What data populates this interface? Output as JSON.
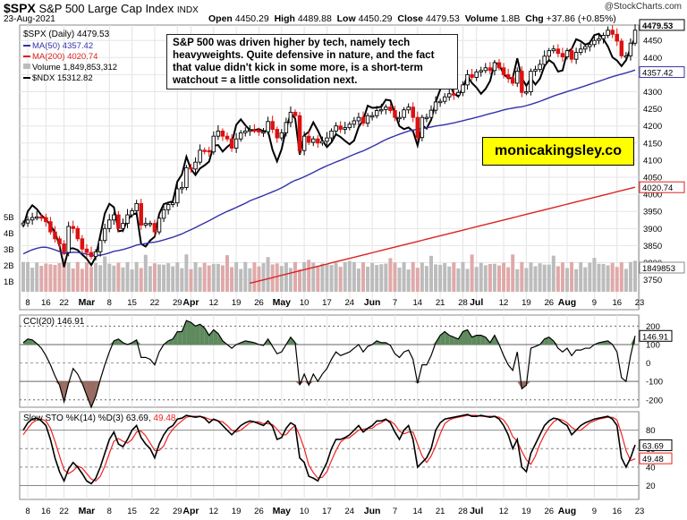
{
  "header": {
    "symbol": "$SPX",
    "title": "S&P 500 Large Cap Index",
    "exchange": "INDX",
    "date": "23-Aug-2021",
    "source": "@StockCharts.com",
    "ohlc": {
      "open_label": "Open",
      "open": "4450.29",
      "high_label": "High",
      "high": "4489.88",
      "low_label": "Low",
      "low": "4450.29",
      "close_label": "Close",
      "close": "4479.53",
      "volume_label": "Volume",
      "volume": "1.8B",
      "chg_label": "Chg",
      "chg": "+37.86 (+0.85%)"
    }
  },
  "legend": {
    "price": "$SPX (Daily) 4479.53",
    "ma50": "MA(50) 4357.42",
    "ma200": "MA(200) 4020.74",
    "volume": "Volume 1,849,853,312",
    "ndx": "$NDX 15312.82"
  },
  "annotation": "S&P 500 was driven higher by tech, namely tech heavyweights. Quite defensive in nature, and the fact that value didn't kick in some more, is a short-term watchout = a little consolidation next.",
  "brand": "monicakingsley.co",
  "colors": {
    "ma50": "#3333aa",
    "ma200": "#dd2222",
    "up": "#000000",
    "down": "#dd1111",
    "cci_pos": "#5e8a5e",
    "cci_neg": "#9a6b62",
    "stoch_d": "#ee2222",
    "volume": "#bcbcbc",
    "volume_red": "#e0a9a9"
  },
  "chart_data": [
    {
      "type": "candlestick",
      "title": "$SPX (Daily)",
      "y_ticks": [
        3750,
        3800,
        3850,
        3900,
        3950,
        4000,
        4050,
        4100,
        4150,
        4200,
        4250,
        4300,
        4350,
        4400,
        4450
      ],
      "y_tick_labels": [
        "3750",
        "3800",
        "3850",
        "3900",
        "3950",
        "4000",
        "4050",
        "4100",
        "4150",
        "4200",
        "4250",
        "4300",
        "4350",
        "4400",
        "4450"
      ],
      "ylim": [
        3715,
        4495
      ],
      "x_tick_labels": [
        "8",
        "16",
        "22",
        "Mar",
        "8",
        "15",
        "22",
        "29",
        "Apr",
        "12",
        "19",
        "26",
        "May",
        "10",
        "17",
        "24",
        "Jun",
        "7",
        "14",
        "21",
        "28",
        "Jul",
        "12",
        "19",
        "26",
        "Aug",
        "9",
        "16",
        "23"
      ],
      "x_tick_positions": [
        1,
        5,
        9,
        14,
        19,
        24,
        29,
        34,
        37,
        42,
        47,
        52,
        57,
        62,
        67,
        72,
        77,
        82,
        87,
        92,
        97,
        100,
        106,
        111,
        116,
        120,
        126,
        131,
        136
      ],
      "close": [
        3916,
        3925,
        3932,
        3934,
        3932,
        3920,
        3890,
        3870,
        3855,
        3830,
        3906,
        3900,
        3870,
        3840,
        3830,
        3818,
        3832,
        3865,
        3900,
        3925,
        3940,
        3900,
        3915,
        3940,
        3952,
        3973,
        3910,
        3915,
        3915,
        3890,
        3930,
        3955,
        3970,
        3975,
        4016,
        4020,
        4078,
        4074,
        4094,
        4129,
        4128,
        4124,
        4170,
        4185,
        4170,
        4162,
        4135,
        4162,
        4180,
        4185,
        4188,
        4187,
        4182,
        4183,
        4213,
        4190,
        4165,
        4180,
        4210,
        4240,
        4230,
        4128,
        4170,
        4152,
        4162,
        4150,
        4155,
        4165,
        4185,
        4200,
        4190,
        4195,
        4205,
        4215,
        4225,
        4208,
        4230,
        4230,
        4245,
        4248,
        4255,
        4245,
        4225,
        4225,
        4247,
        4255,
        4225,
        4166,
        4225,
        4225,
        4246,
        4270,
        4272,
        4285,
        4294,
        4290,
        4298,
        4320,
        4350,
        4342,
        4358,
        4362,
        4370,
        4362,
        4385,
        4370,
        4350,
        4340,
        4325,
        4360,
        4298,
        4300,
        4360,
        4365,
        4380,
        4404,
        4420,
        4425,
        4412,
        4402,
        4420,
        4395,
        4415,
        4425,
        4432,
        4438,
        4450,
        4455,
        4465,
        4480,
        4468,
        4448,
        4405,
        4405,
        4442,
        4480
      ],
      "volume_scale_labels": [
        "5B",
        "4B",
        "3B",
        "2B",
        "1B"
      ],
      "ma50": {
        "label": "MA(50)",
        "last": 4357.42
      },
      "ma200": {
        "label": "MA(200)",
        "last": 4020.74
      },
      "ndx": {
        "label": "$NDX",
        "last": 15312.82
      },
      "last_labels": [
        "4479.53",
        "4357.42",
        "4020.74",
        "1849853"
      ]
    },
    {
      "type": "line",
      "title": "CCI(20)",
      "last": 146.91,
      "y_ticks": [
        200,
        100,
        0,
        -100,
        -200
      ],
      "y_tick_labels": [
        "200",
        "100",
        "0",
        "-100",
        "-200"
      ],
      "ylim": [
        -240,
        260
      ],
      "last_label": "146.91",
      "values": [
        110,
        130,
        125,
        105,
        80,
        40,
        -10,
        -70,
        -120,
        -210,
        -110,
        -30,
        -60,
        -110,
        -175,
        -240,
        -180,
        -90,
        -10,
        60,
        120,
        130,
        110,
        100,
        110,
        125,
        30,
        30,
        20,
        -10,
        60,
        100,
        120,
        130,
        170,
        170,
        230,
        220,
        200,
        210,
        190,
        150,
        180,
        160,
        120,
        100,
        80,
        100,
        110,
        120,
        115,
        110,
        100,
        95,
        130,
        90,
        50,
        60,
        100,
        140,
        110,
        -120,
        -60,
        -120,
        -60,
        -100,
        -60,
        -30,
        20,
        60,
        40,
        50,
        60,
        80,
        100,
        60,
        90,
        100,
        120,
        110,
        110,
        95,
        50,
        30,
        60,
        70,
        20,
        -110,
        -10,
        -10,
        40,
        110,
        150,
        170,
        150,
        140,
        130,
        170,
        180,
        140,
        150,
        150,
        140,
        110,
        150,
        100,
        40,
        -10,
        -40,
        60,
        -140,
        -120,
        80,
        90,
        100,
        130,
        140,
        120,
        80,
        60,
        80,
        40,
        70,
        70,
        80,
        80,
        100,
        110,
        115,
        120,
        100,
        60,
        -80,
        -100,
        40,
        147
      ]
    },
    {
      "type": "line",
      "title": "Slow STO %K(14) %D(3)",
      "k_last": 63.69,
      "d_last": 49.48,
      "y_ticks": [
        80,
        60,
        40,
        20
      ],
      "y_tick_labels": [
        "80",
        "60",
        "40",
        "20"
      ],
      "ylim": [
        5,
        100
      ],
      "last_labels": [
        "63.69",
        "49.48"
      ],
      "k": [
        80,
        88,
        92,
        93,
        90,
        85,
        70,
        50,
        35,
        25,
        38,
        45,
        40,
        33,
        25,
        22,
        28,
        40,
        55,
        70,
        78,
        65,
        62,
        70,
        80,
        85,
        72,
        65,
        60,
        50,
        65,
        75,
        82,
        85,
        92,
        93,
        96,
        95,
        94,
        95,
        93,
        88,
        92,
        90,
        85,
        80,
        75,
        80,
        85,
        88,
        90,
        89,
        87,
        85,
        90,
        84,
        70,
        72,
        82,
        88,
        85,
        50,
        45,
        30,
        28,
        25,
        35,
        45,
        60,
        70,
        70,
        72,
        75,
        80,
        85,
        78,
        82,
        85,
        90,
        90,
        92,
        88,
        78,
        70,
        80,
        85,
        70,
        40,
        45,
        50,
        60,
        80,
        88,
        92,
        93,
        94,
        95,
        96,
        97,
        95,
        95,
        96,
        95,
        94,
        95,
        92,
        85,
        75,
        60,
        70,
        40,
        35,
        55,
        65,
        75,
        85,
        90,
        93,
        92,
        88,
        85,
        75,
        80,
        85,
        88,
        90,
        92,
        93,
        94,
        95,
        92,
        85,
        50,
        40,
        50,
        64
      ],
      "d": [
        75,
        82,
        88,
        91,
        92,
        90,
        82,
        68,
        52,
        37,
        33,
        36,
        41,
        39,
        33,
        27,
        25,
        30,
        41,
        55,
        68,
        71,
        68,
        66,
        70,
        78,
        79,
        74,
        66,
        58,
        58,
        63,
        74,
        81,
        86,
        90,
        94,
        95,
        95,
        95,
        94,
        92,
        91,
        90,
        89,
        85,
        80,
        78,
        80,
        84,
        88,
        89,
        89,
        87,
        87,
        86,
        81,
        75,
        75,
        81,
        85,
        74,
        60,
        42,
        34,
        28,
        29,
        35,
        47,
        58,
        67,
        71,
        72,
        76,
        80,
        81,
        82,
        82,
        86,
        88,
        91,
        90,
        86,
        79,
        76,
        78,
        78,
        65,
        52,
        45,
        52,
        63,
        76,
        87,
        91,
        93,
        94,
        95,
        96,
        96,
        96,
        95,
        95,
        95,
        95,
        94,
        91,
        84,
        73,
        68,
        57,
        48,
        43,
        52,
        65,
        75,
        83,
        89,
        92,
        91,
        88,
        83,
        80,
        80,
        84,
        88,
        90,
        92,
        93,
        94,
        94,
        91,
        76,
        58,
        47,
        49
      ]
    }
  ]
}
